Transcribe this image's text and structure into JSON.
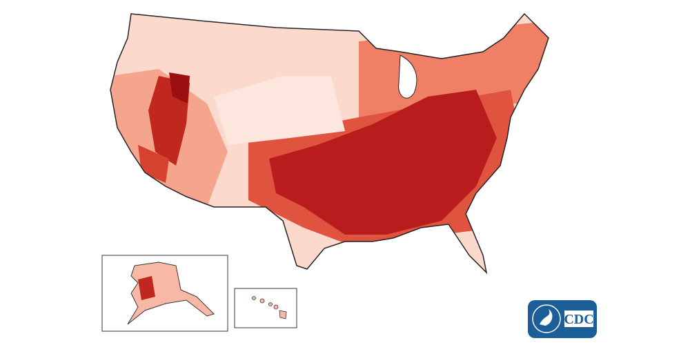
{
  "logo": {
    "text": "CDC"
  }
}
